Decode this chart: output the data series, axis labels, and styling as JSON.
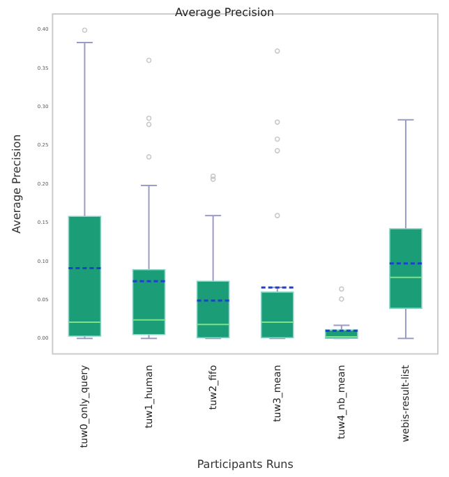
{
  "chart_data": {
    "type": "box",
    "title": "Average Precision",
    "xlabel": "Participants Runs",
    "ylabel": "Average Precision",
    "categories": [
      "tuw0_only_query",
      "tuw1_human",
      "tuw2_fifo",
      "tuw3_mean",
      "tuw4_nb_mean",
      "webis-result-list"
    ],
    "color": "#1b9e77",
    "boxes": [
      {
        "low": 0,
        "q1": 0.003,
        "median": 0.021,
        "q3": 0.158,
        "high": 0.383,
        "mean": 0.091,
        "outliers": [
          0.399
        ]
      },
      {
        "low": 0,
        "q1": 0.005,
        "median": 0.024,
        "q3": 0.089,
        "high": 0.198,
        "mean": 0.074,
        "outliers": [
          0.36,
          0.285,
          0.277,
          0.235
        ]
      },
      {
        "low": 0,
        "q1": 0.001,
        "median": 0.018,
        "q3": 0.074,
        "high": 0.159,
        "mean": 0.049,
        "outliers": [
          0.21,
          0.206
        ]
      },
      {
        "low": 0,
        "q1": 0.001,
        "median": 0.021,
        "q3": 0.06,
        "high": 0.066,
        "mean": 0.066,
        "outliers": [
          0.372,
          0.28,
          0.258,
          0.243,
          0.159
        ]
      },
      {
        "low": 0,
        "q1": 0,
        "median": 0.002,
        "q3": 0.011,
        "high": 0.017,
        "mean": 0.01,
        "outliers": [
          0.064,
          0.051
        ]
      },
      {
        "low": 0,
        "q1": 0.039,
        "median": 0.079,
        "q3": 0.142,
        "high": 0.283,
        "mean": 0.097
      }
    ],
    "ylim": [
      -0.02,
      0.42
    ],
    "yticks": [
      {
        "value": 0,
        "label": "0.00"
      },
      {
        "value": 0.05,
        "label": "0.05"
      },
      {
        "value": 0.1,
        "label": "0.10"
      },
      {
        "value": 0.15,
        "label": "0.15"
      },
      {
        "value": 0.2,
        "label": "0.20"
      },
      {
        "value": 0.25,
        "label": "0.25"
      },
      {
        "value": 0.3,
        "label": "0.30"
      },
      {
        "value": 0.35,
        "label": "0.35"
      },
      {
        "value": 0.4,
        "label": "0.40"
      }
    ],
    "grid": false,
    "legend": false
  }
}
